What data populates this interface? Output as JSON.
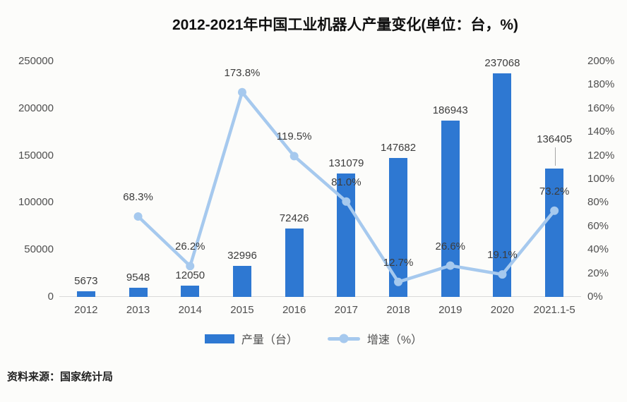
{
  "title": "2012-2021年中国工业机器人产量变化(单位：台，%)",
  "source_note": "资料来源：国家统计局",
  "legend": {
    "bar_label": "产量（台）",
    "line_label": "增速（%）"
  },
  "colors": {
    "bar": "#2E78D2",
    "line": "#A6C9EE",
    "axis_text": "#4f4f4f",
    "data_label_text": "#3c3c3c",
    "title_text": "#101010",
    "baseline": "#d9d9d9",
    "leader": "#a6a6a6",
    "background": "#fcfcfa"
  },
  "chart_data": {
    "type": "combo",
    "title": "2012-2021年中国工业机器人产量变化(单位：台，%)",
    "categories": [
      "2012",
      "2013",
      "2014",
      "2015",
      "2016",
      "2017",
      "2018",
      "2019",
      "2020",
      "2021.1-5"
    ],
    "series": [
      {
        "name": "产量（台）",
        "type": "bar",
        "axis": "left",
        "values": [
          5673,
          9548,
          12050,
          32996,
          72426,
          131079,
          147682,
          186943,
          237068,
          136405
        ],
        "labels": [
          "5673",
          "9548",
          "12050",
          "32996",
          "72426",
          "131079",
          "147682",
          "186943",
          "237068",
          "136405"
        ]
      },
      {
        "name": "增速（%）",
        "type": "line",
        "axis": "right",
        "values": [
          null,
          68.3,
          26.2,
          173.8,
          119.5,
          81.0,
          12.7,
          26.6,
          19.1,
          73.2
        ],
        "labels": [
          "",
          "68.3%",
          "26.2%",
          "173.8%",
          "119.5%",
          "81.0%",
          "12.7%",
          "26.6%",
          "19.1%",
          "73.2%"
        ]
      }
    ],
    "left_axis": {
      "min": 0,
      "max": 250000,
      "ticks": [
        "0",
        "50000",
        "100000",
        "150000",
        "200000",
        "250000"
      ]
    },
    "right_axis": {
      "min": 0,
      "max": 200,
      "ticks": [
        "0%",
        "20%",
        "40%",
        "60%",
        "80%",
        "100%",
        "120%",
        "140%",
        "160%",
        "180%",
        "200%"
      ]
    },
    "gridlines": false,
    "legend_position": "bottom",
    "label_callout_index": 9
  }
}
